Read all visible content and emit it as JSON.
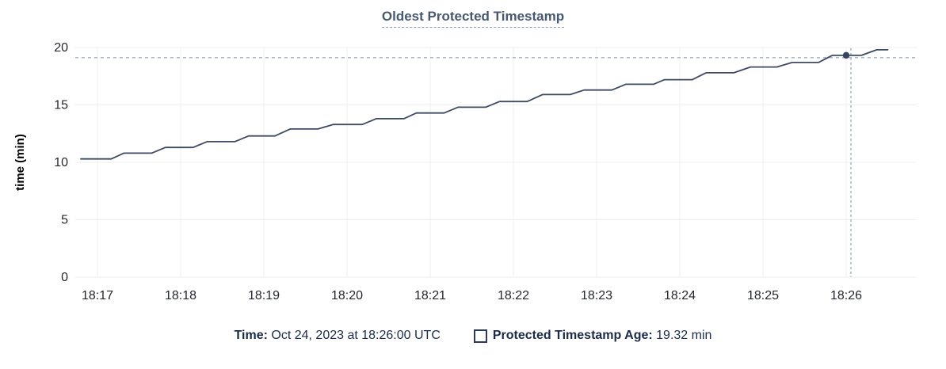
{
  "colors": {
    "line": "#3d4a63",
    "title": "#475872",
    "crosshair": "#9fb0c2",
    "grid": "#efefef",
    "axis_text": "#24272e",
    "legend_text": "#1c2b4a",
    "dot": "#37435c"
  },
  "legend": {
    "time_label": "Time:",
    "time_value": "Oct 24, 2023 at 18:26:00 UTC",
    "series_label": "Protected Timestamp Age:",
    "series_value": "19.32 min"
  },
  "chart_data": {
    "type": "line",
    "title": "Oldest Protected Timestamp",
    "xlabel": "",
    "ylabel": "time (min)",
    "ylim": [
      0,
      20
    ],
    "y_ticks": [
      0,
      5,
      10,
      15,
      20
    ],
    "x_ticks": [
      "18:17",
      "18:18",
      "18:19",
      "18:20",
      "18:21",
      "18:22",
      "18:23",
      "18:24",
      "18:25",
      "18:26"
    ],
    "grid": true,
    "legend_position": "bottom",
    "series": [
      {
        "name": "Protected Timestamp Age",
        "unit": "min",
        "points": [
          [
            "18:16:48",
            10.3
          ],
          [
            "18:17:10",
            10.3
          ],
          [
            "18:17:19",
            10.8
          ],
          [
            "18:17:39",
            10.8
          ],
          [
            "18:17:49",
            11.3
          ],
          [
            "18:18:09",
            11.3
          ],
          [
            "18:18:19",
            11.8
          ],
          [
            "18:18:39",
            11.8
          ],
          [
            "18:18:49",
            12.3
          ],
          [
            "18:19:08",
            12.3
          ],
          [
            "18:19:19",
            12.9
          ],
          [
            "18:19:39",
            12.9
          ],
          [
            "18:19:50",
            13.3
          ],
          [
            "18:20:11",
            13.3
          ],
          [
            "18:20:21",
            13.8
          ],
          [
            "18:20:41",
            13.8
          ],
          [
            "18:20:50",
            14.3
          ],
          [
            "18:21:10",
            14.3
          ],
          [
            "18:21:20",
            14.8
          ],
          [
            "18:21:40",
            14.8
          ],
          [
            "18:21:50",
            15.3
          ],
          [
            "18:22:10",
            15.3
          ],
          [
            "18:22:21",
            15.9
          ],
          [
            "18:22:41",
            15.9
          ],
          [
            "18:22:51",
            16.3
          ],
          [
            "18:23:11",
            16.3
          ],
          [
            "18:23:21",
            16.8
          ],
          [
            "18:23:41",
            16.8
          ],
          [
            "18:23:49",
            17.2
          ],
          [
            "18:24:09",
            17.2
          ],
          [
            "18:24:19",
            17.8
          ],
          [
            "18:24:39",
            17.8
          ],
          [
            "18:24:51",
            18.3
          ],
          [
            "18:25:10",
            18.3
          ],
          [
            "18:25:21",
            18.7
          ],
          [
            "18:25:40",
            18.7
          ],
          [
            "18:25:50",
            19.32
          ],
          [
            "18:26:11",
            19.32
          ],
          [
            "18:26:22",
            19.8
          ],
          [
            "18:26:30",
            19.8
          ]
        ]
      }
    ],
    "highlight": {
      "time": "18:26:00",
      "value": 19.32
    }
  }
}
